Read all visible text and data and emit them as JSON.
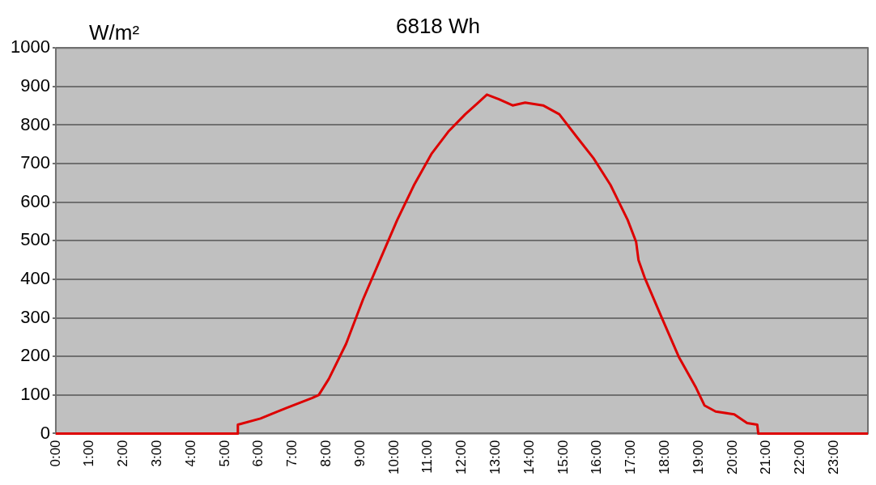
{
  "chart_data": {
    "type": "line",
    "title": "6818 Wh",
    "ylabel": "W/m²",
    "x": [
      0,
      5.37,
      5.38,
      6.05,
      6.8,
      7.57,
      7.77,
      8.07,
      8.58,
      9.08,
      9.58,
      10.09,
      10.59,
      11.1,
      11.6,
      12.1,
      12.48,
      12.74,
      13.1,
      13.5,
      13.87,
      14.4,
      14.88,
      15.38,
      15.89,
      16.39,
      16.9,
      17.15,
      17.22,
      17.4,
      17.9,
      18.41,
      18.92,
      19.17,
      19.5,
      20.05,
      20.43,
      20.73,
      20.76,
      24
    ],
    "series": [
      {
        "color": "#dd0000",
        "values": [
          0,
          0,
          23,
          39,
          66,
          92,
          100,
          142,
          233,
          348,
          450,
          554,
          645,
          725,
          783,
          828,
          858,
          879,
          867,
          851,
          858,
          851,
          828,
          771,
          714,
          645,
          554,
          497,
          450,
          405,
          302,
          199,
          119,
          73,
          57,
          50,
          27,
          23,
          0,
          0
        ]
      }
    ],
    "xlim": [
      0,
      24
    ],
    "xticks": [
      {
        "value": 0,
        "label": "0:00"
      },
      {
        "value": 1,
        "label": "1:00"
      },
      {
        "value": 2,
        "label": "2:00"
      },
      {
        "value": 3,
        "label": "3:00"
      },
      {
        "value": 4,
        "label": "4:00"
      },
      {
        "value": 5,
        "label": "5:00"
      },
      {
        "value": 6,
        "label": "6:00"
      },
      {
        "value": 7,
        "label": "7:00"
      },
      {
        "value": 8,
        "label": "8:00"
      },
      {
        "value": 9,
        "label": "9:00"
      },
      {
        "value": 10,
        "label": "10:00"
      },
      {
        "value": 11,
        "label": "11:00"
      },
      {
        "value": 12,
        "label": "12:00"
      },
      {
        "value": 13,
        "label": "13:00"
      },
      {
        "value": 14,
        "label": "14:00"
      },
      {
        "value": 15,
        "label": "15:00"
      },
      {
        "value": 16,
        "label": "16:00"
      },
      {
        "value": 17,
        "label": "17:00"
      },
      {
        "value": 18,
        "label": "18:00"
      },
      {
        "value": 19,
        "label": "19:00"
      },
      {
        "value": 20,
        "label": "20:00"
      },
      {
        "value": 21,
        "label": "21:00"
      },
      {
        "value": 22,
        "label": "22:00"
      },
      {
        "value": 23,
        "label": "23:00"
      }
    ],
    "ylim": [
      0,
      1000
    ],
    "yticks": [
      0,
      100,
      200,
      300,
      400,
      500,
      600,
      700,
      800,
      900,
      1000
    ],
    "grid": "y",
    "legend": false,
    "marker": "none",
    "line_style": "solid"
  }
}
